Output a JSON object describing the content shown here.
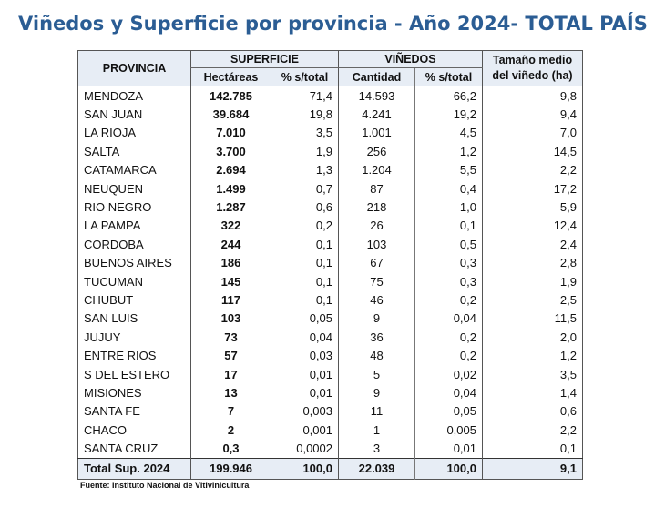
{
  "title": "Viñedos y Superficie por provincia - Año 2024- TOTAL PAÍS",
  "headers": {
    "provincia": "PROVINCIA",
    "superficie": "SUPERFICIE",
    "vinedos": "VIÑEDOS",
    "tamano_line1": "Tamaño medio",
    "tamano_line2": "del viñedo (ha)",
    "hectareas": "Hectáreas",
    "pct_superficie": "% s/total",
    "cantidad": "Cantidad",
    "pct_vinedos": "% s/total"
  },
  "rows": [
    {
      "provincia": "MENDOZA",
      "hectareas": "142.785",
      "pct_sup": "71,4",
      "cantidad": "14.593",
      "pct_vin": "66,2",
      "tamano": "9,8"
    },
    {
      "provincia": "SAN JUAN",
      "hectareas": "39.684",
      "pct_sup": "19,8",
      "cantidad": "4.241",
      "pct_vin": "19,2",
      "tamano": "9,4"
    },
    {
      "provincia": "LA RIOJA",
      "hectareas": "7.010",
      "pct_sup": "3,5",
      "cantidad": "1.001",
      "pct_vin": "4,5",
      "tamano": "7,0"
    },
    {
      "provincia": "SALTA",
      "hectareas": "3.700",
      "pct_sup": "1,9",
      "cantidad": "256",
      "pct_vin": "1,2",
      "tamano": "14,5"
    },
    {
      "provincia": "CATAMARCA",
      "hectareas": "2.694",
      "pct_sup": "1,3",
      "cantidad": "1.204",
      "pct_vin": "5,5",
      "tamano": "2,2"
    },
    {
      "provincia": "NEUQUEN",
      "hectareas": "1.499",
      "pct_sup": "0,7",
      "cantidad": "87",
      "pct_vin": "0,4",
      "tamano": "17,2"
    },
    {
      "provincia": "RIO NEGRO",
      "hectareas": "1.287",
      "pct_sup": "0,6",
      "cantidad": "218",
      "pct_vin": "1,0",
      "tamano": "5,9"
    },
    {
      "provincia": "LA PAMPA",
      "hectareas": "322",
      "pct_sup": "0,2",
      "cantidad": "26",
      "pct_vin": "0,1",
      "tamano": "12,4"
    },
    {
      "provincia": "CORDOBA",
      "hectareas": "244",
      "pct_sup": "0,1",
      "cantidad": "103",
      "pct_vin": "0,5",
      "tamano": "2,4"
    },
    {
      "provincia": "BUENOS AIRES",
      "hectareas": "186",
      "pct_sup": "0,1",
      "cantidad": "67",
      "pct_vin": "0,3",
      "tamano": "2,8"
    },
    {
      "provincia": "TUCUMAN",
      "hectareas": "145",
      "pct_sup": "0,1",
      "cantidad": "75",
      "pct_vin": "0,3",
      "tamano": "1,9"
    },
    {
      "provincia": "CHUBUT",
      "hectareas": "117",
      "pct_sup": "0,1",
      "cantidad": "46",
      "pct_vin": "0,2",
      "tamano": "2,5"
    },
    {
      "provincia": "SAN LUIS",
      "hectareas": "103",
      "pct_sup": "0,05",
      "cantidad": "9",
      "pct_vin": "0,04",
      "tamano": "11,5"
    },
    {
      "provincia": "JUJUY",
      "hectareas": "73",
      "pct_sup": "0,04",
      "cantidad": "36",
      "pct_vin": "0,2",
      "tamano": "2,0"
    },
    {
      "provincia": "ENTRE RIOS",
      "hectareas": "57",
      "pct_sup": "0,03",
      "cantidad": "48",
      "pct_vin": "0,2",
      "tamano": "1,2"
    },
    {
      "provincia": "S DEL ESTERO",
      "hectareas": "17",
      "pct_sup": "0,01",
      "cantidad": "5",
      "pct_vin": "0,02",
      "tamano": "3,5"
    },
    {
      "provincia": "MISIONES",
      "hectareas": "13",
      "pct_sup": "0,01",
      "cantidad": "9",
      "pct_vin": "0,04",
      "tamano": "1,4"
    },
    {
      "provincia": "SANTA FE",
      "hectareas": "7",
      "pct_sup": "0,003",
      "cantidad": "11",
      "pct_vin": "0,05",
      "tamano": "0,6"
    },
    {
      "provincia": "CHACO",
      "hectareas": "2",
      "pct_sup": "0,001",
      "cantidad": "1",
      "pct_vin": "0,005",
      "tamano": "2,2"
    },
    {
      "provincia": "SANTA CRUZ",
      "hectareas": "0,3",
      "pct_sup": "0,0002",
      "cantidad": "3",
      "pct_vin": "0,01",
      "tamano": "0,1"
    }
  ],
  "total": {
    "label": "Total  Sup. 2024",
    "hectareas": "199.946",
    "pct_sup": "100,0",
    "cantidad": "22.039",
    "pct_vin": "100,0",
    "tamano": "9,1"
  },
  "source": "Fuente: Instituto Nacional de Vitivinicultura",
  "colors": {
    "title": "#2b5d94",
    "header_bg": "#e7edf5"
  }
}
